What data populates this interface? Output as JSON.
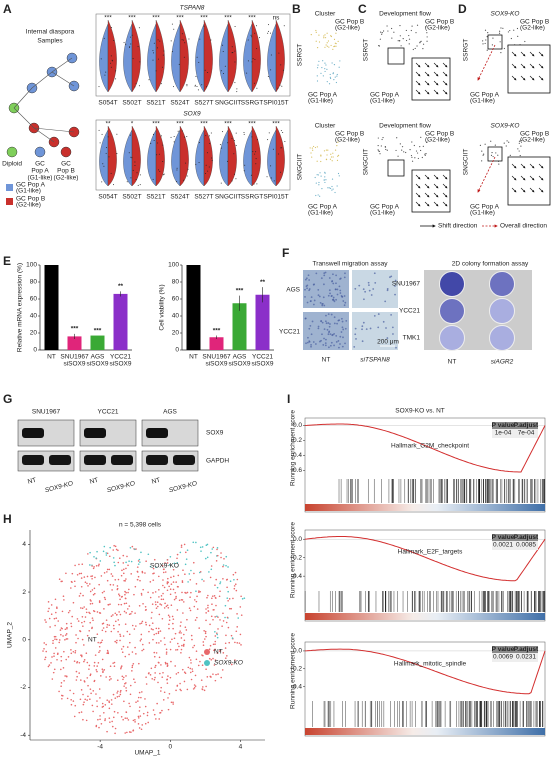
{
  "panel_labels": [
    "A",
    "B",
    "C",
    "D",
    "E",
    "F",
    "G",
    "H",
    "I"
  ],
  "a": {
    "title": [
      "Internal diaspora",
      "Samples"
    ],
    "cell_types": [
      [
        "Diploid"
      ],
      [
        "GC",
        "Pop A",
        "(G1-like)"
      ],
      [
        "GC",
        "Pop B",
        "(G2-like)"
      ]
    ],
    "legend": [
      {
        "label": [
          "GC Pop A",
          "(G1-like)"
        ],
        "color": "#6f95d8"
      },
      {
        "label": [
          "GC Pop B",
          "(G2-like)"
        ],
        "color": "#c9302c"
      }
    ],
    "genes": [
      "TSPAN8",
      "SOX9"
    ],
    "samples": [
      "S054T",
      "S502T",
      "S521T",
      "S524T",
      "S527T",
      "SNGCIIT",
      "SSRGT",
      "SPI015T"
    ],
    "significance": [
      [
        "***",
        "***",
        "***",
        "***",
        "***",
        "***",
        "***",
        "ns"
      ],
      [
        "**",
        "*",
        "***",
        "***",
        "***",
        "***",
        "***",
        "***"
      ]
    ]
  },
  "b": {
    "title": "Cluster",
    "samples": [
      "SSRGT",
      "SNGCIIT"
    ],
    "pop_b": [
      "GC Pop B",
      "(G2-like)"
    ],
    "pop_a": [
      "GC Pop A",
      "(G1-like)"
    ]
  },
  "c": {
    "title": "Development flow",
    "legend": [
      "Shift direction",
      "Overall direction"
    ]
  },
  "d": {
    "title": "SOX9-KO"
  },
  "e": {
    "type": "bar",
    "categories": [
      [
        "NT"
      ],
      [
        "SNU1967",
        "siSOX9"
      ],
      [
        "AGS",
        "siSOX9"
      ],
      [
        "YCC21",
        "siSOX9"
      ]
    ],
    "colors": [
      "#000000",
      "#e0257a",
      "#3aa935",
      "#8b2fc9"
    ],
    "ylim": [
      0,
      100
    ],
    "yticks": [
      0,
      20,
      40,
      60,
      80,
      100
    ],
    "charts": [
      {
        "ylabel": "Relative mRNA expression (%)",
        "values": [
          100,
          16,
          17,
          66
        ],
        "errors": [
          0,
          3,
          0,
          3
        ],
        "significance": [
          null,
          "***",
          "***",
          "**"
        ]
      },
      {
        "ylabel": "Cell viability (%)",
        "values": [
          100,
          15,
          55,
          65
        ],
        "errors": [
          0,
          2,
          9,
          9
        ],
        "significance": [
          null,
          "***",
          "***",
          "**"
        ]
      }
    ]
  },
  "f": {
    "migration": {
      "title": "Transwell migration assay",
      "rows": [
        "AGS",
        "YCC21"
      ],
      "cols": [
        "NT",
        "siTSPAN8"
      ],
      "scale_bar": "200 μm"
    },
    "colony": {
      "title": "2D colony formation assay",
      "rows": [
        "SNU1967",
        "YCC21",
        "TMK1"
      ],
      "cols": [
        "NT",
        "siAGR2"
      ]
    }
  },
  "g": {
    "cell_lines": [
      "SNU1967",
      "YCC21",
      "AGS"
    ],
    "proteins": [
      "SOX9",
      "GAPDH"
    ],
    "lanes": [
      "NT",
      "SOX9-KO"
    ]
  },
  "h": {
    "type": "scatter",
    "title": "n = 5,398 cells",
    "xlabel": "UMAP_1",
    "ylabel": "UMAP_2",
    "xlim": [
      -8,
      5.4
    ],
    "ylim": [
      -4.2,
      4.6
    ],
    "xticks": [
      -4,
      0,
      4
    ],
    "yticks": [
      -4,
      -2,
      0,
      2,
      4
    ],
    "series": [
      {
        "name": "NT",
        "color": "#e8696b"
      },
      {
        "name": "SOX9-KO",
        "color": "#4fc3c3"
      }
    ],
    "annotations": [
      "SOX9-KO",
      "NT"
    ]
  },
  "i": {
    "title": "SOX9-KO vs. NT",
    "ylabel": "Running enrichment score",
    "table_header": [
      "P value",
      "P.adjust"
    ],
    "panels": [
      {
        "name": "Hallmark_G2M_checkpoint",
        "p_value": "1e-04",
        "p_adjust": "7e-04",
        "ylim": [
          -0.7,
          0.1
        ],
        "yticks": [
          {
            "value": 0,
            "label": "0.0"
          },
          -0.2,
          -0.4,
          -0.6
        ]
      },
      {
        "name": "Hallmark_E2F_targets",
        "p_value": "0.0021",
        "p_adjust": "0.0085",
        "ylim": [
          -0.55,
          0.1
        ],
        "yticks": [
          {
            "value": 0,
            "label": "0.0"
          },
          -0.2,
          -0.4
        ]
      },
      {
        "name": "Hallmark_mitotic_spindle",
        "p_value": "0.0069",
        "p_adjust": "0.0231",
        "ylim": [
          -0.55,
          0.1
        ],
        "yticks": [
          {
            "value": 0,
            "label": "0.0"
          },
          -0.2,
          -0.4
        ]
      }
    ]
  }
}
